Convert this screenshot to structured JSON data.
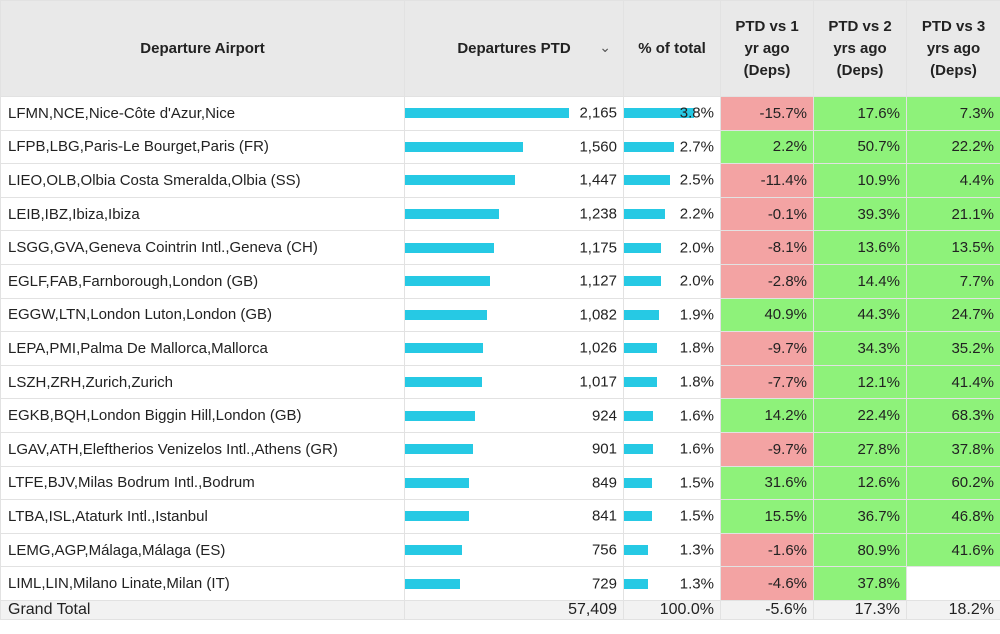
{
  "headers": {
    "airport": "Departure Airport",
    "departures": "Departures PTD",
    "share": "% of total",
    "vs1": "PTD vs 1 yr ago (Deps)",
    "vs2": "PTD vs 2 yrs ago (Deps)",
    "vs3": "PTD vs 3 yrs ago (Deps)",
    "sort_icon": "chevron-down-icon"
  },
  "colors": {
    "bar": "#26c9e4",
    "positive": "#8ef27a",
    "negative": "#f3a3a3",
    "header_bg": "#e9e9e9"
  },
  "rows": [
    {
      "airport": "LFMN,NCE,Nice-Côte d'Azur,Nice",
      "deps": "2,165",
      "deps_value": 2165,
      "share": "3.8%",
      "share_value": 3.8,
      "vs1": "-15.7%",
      "vs2": "17.6%",
      "vs3": "7.3%"
    },
    {
      "airport": "LFPB,LBG,Paris-Le Bourget,Paris (FR)",
      "deps": "1,560",
      "deps_value": 1560,
      "share": "2.7%",
      "share_value": 2.7,
      "vs1": "2.2%",
      "vs2": "50.7%",
      "vs3": "22.2%"
    },
    {
      "airport": "LIEO,OLB,Olbia Costa Smeralda,Olbia (SS)",
      "deps": "1,447",
      "deps_value": 1447,
      "share": "2.5%",
      "share_value": 2.5,
      "vs1": "-11.4%",
      "vs2": "10.9%",
      "vs3": "4.4%"
    },
    {
      "airport": "LEIB,IBZ,Ibiza,Ibiza",
      "deps": "1,238",
      "deps_value": 1238,
      "share": "2.2%",
      "share_value": 2.2,
      "vs1": "-0.1%",
      "vs2": "39.3%",
      "vs3": "21.1%"
    },
    {
      "airport": "LSGG,GVA,Geneva Cointrin Intl.,Geneva (CH)",
      "deps": "1,175",
      "deps_value": 1175,
      "share": "2.0%",
      "share_value": 2.0,
      "vs1": "-8.1%",
      "vs2": "13.6%",
      "vs3": "13.5%"
    },
    {
      "airport": "EGLF,FAB,Farnborough,London (GB)",
      "deps": "1,127",
      "deps_value": 1127,
      "share": "2.0%",
      "share_value": 2.0,
      "vs1": "-2.8%",
      "vs2": "14.4%",
      "vs3": "7.7%"
    },
    {
      "airport": "EGGW,LTN,London Luton,London (GB)",
      "deps": "1,082",
      "deps_value": 1082,
      "share": "1.9%",
      "share_value": 1.9,
      "vs1": "40.9%",
      "vs2": "44.3%",
      "vs3": "24.7%"
    },
    {
      "airport": "LEPA,PMI,Palma De Mallorca,Mallorca",
      "deps": "1,026",
      "deps_value": 1026,
      "share": "1.8%",
      "share_value": 1.8,
      "vs1": "-9.7%",
      "vs2": "34.3%",
      "vs3": "35.2%"
    },
    {
      "airport": "LSZH,ZRH,Zurich,Zurich",
      "deps": "1,017",
      "deps_value": 1017,
      "share": "1.8%",
      "share_value": 1.8,
      "vs1": "-7.7%",
      "vs2": "12.1%",
      "vs3": "41.4%"
    },
    {
      "airport": "EGKB,BQH,London Biggin Hill,London (GB)",
      "deps": "924",
      "deps_value": 924,
      "share": "1.6%",
      "share_value": 1.6,
      "vs1": "14.2%",
      "vs2": "22.4%",
      "vs3": "68.3%"
    },
    {
      "airport": "LGAV,ATH,Eleftherios Venizelos Intl.,Athens (GR)",
      "deps": "901",
      "deps_value": 901,
      "share": "1.6%",
      "share_value": 1.6,
      "vs1": "-9.7%",
      "vs2": "27.8%",
      "vs3": "37.8%"
    },
    {
      "airport": "LTFE,BJV,Milas Bodrum Intl.,Bodrum",
      "deps": "849",
      "deps_value": 849,
      "share": "1.5%",
      "share_value": 1.5,
      "vs1": "31.6%",
      "vs2": "12.6%",
      "vs3": "60.2%"
    },
    {
      "airport": "LTBA,ISL,Ataturk Intl.,Istanbul",
      "deps": "841",
      "deps_value": 841,
      "share": "1.5%",
      "share_value": 1.5,
      "vs1": "15.5%",
      "vs2": "36.7%",
      "vs3": "46.8%"
    },
    {
      "airport": "LEMG,AGP,Málaga,Málaga (ES)",
      "deps": "756",
      "deps_value": 756,
      "share": "1.3%",
      "share_value": 1.3,
      "vs1": "-1.6%",
      "vs2": "80.9%",
      "vs3": "41.6%"
    },
    {
      "airport": "LIML,LIN,Milano Linate,Milan (IT)",
      "deps": "729",
      "deps_value": 729,
      "share": "1.3%",
      "share_value": 1.3,
      "vs1": "-4.6%",
      "vs2": "37.8%",
      "vs3": ""
    }
  ],
  "total": {
    "label": "Grand Total",
    "deps": "57,409",
    "share": "100.0%",
    "vs1": "-5.6%",
    "vs2": "17.3%",
    "vs3": "18.2%"
  }
}
